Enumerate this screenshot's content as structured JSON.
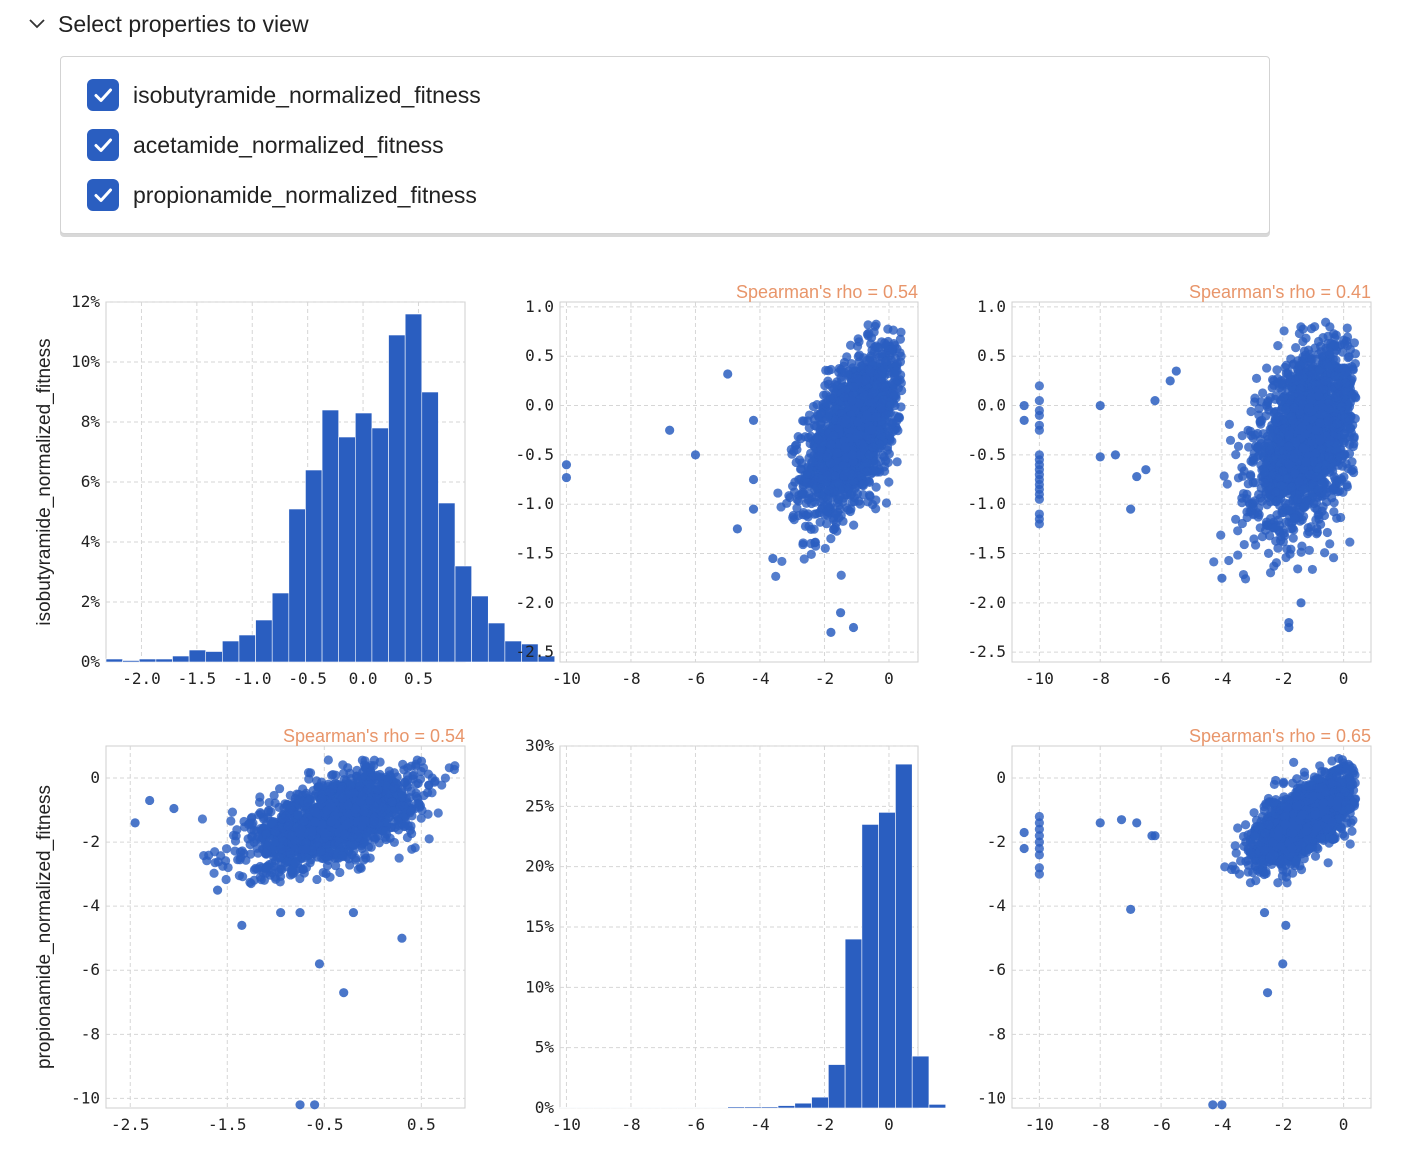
{
  "header": {
    "toggle_label": "Select properties to view"
  },
  "properties": [
    {
      "label": "isobutyramide_normalized_fitness",
      "checked": true
    },
    {
      "label": "acetamide_normalized_fitness",
      "checked": true
    },
    {
      "label": "propionamide_normalized_fitness",
      "checked": true
    }
  ],
  "colors": {
    "accent": "#2a5ec0",
    "point": "#2a5ec0",
    "rho_text": "#e8956a",
    "grid": "#d6d6d6"
  },
  "chart_data": [
    {
      "type": "bar",
      "ylabel": "isobutyramide_normalized_fitness",
      "x_ticks": [
        "-2.0",
        "-1.5",
        "-1.0",
        "-0.5",
        "0.0",
        "0.5"
      ],
      "y_ticks": [
        "0%",
        "2%",
        "4%",
        "6%",
        "8%",
        "10%",
        "12%"
      ],
      "xlim": [
        -2.32,
        0.92
      ],
      "ylim": [
        0,
        12
      ],
      "bin_start": -2.32,
      "bin_width": 0.15,
      "values": [
        0.1,
        0.05,
        0.1,
        0.1,
        0.2,
        0.4,
        0.35,
        0.7,
        0.9,
        1.4,
        2.3,
        5.1,
        6.4,
        8.4,
        7.5,
        8.3,
        7.8,
        10.9,
        11.6,
        9.0,
        5.3,
        3.2,
        2.2,
        1.3,
        0.7,
        0.6,
        0.2
      ],
      "grid": true
    },
    {
      "type": "scatter",
      "annotation": "Spearman's rho = 0.54",
      "x_ticks": [
        "-10",
        "-8",
        "-6",
        "-4",
        "-2",
        "0"
      ],
      "y_ticks": [
        "1.0",
        "0.5",
        "0.0",
        "-0.5",
        "-1.0",
        "-1.5",
        "-2.0",
        "-2.5"
      ],
      "xlim": [
        -10.2,
        0.9
      ],
      "ylim": [
        -2.6,
        1.05
      ],
      "outliers": [
        [
          -10,
          -0.6
        ],
        [
          -10,
          -0.73
        ],
        [
          -6.8,
          -0.25
        ],
        [
          -5.0,
          0.32
        ],
        [
          -6.0,
          -0.5
        ],
        [
          -4.2,
          -0.15
        ],
        [
          -4.2,
          -0.75
        ],
        [
          -4.7,
          -1.25
        ],
        [
          -4.2,
          -1.05
        ],
        [
          -3.6,
          -1.55
        ],
        [
          -1.8,
          -2.3
        ],
        [
          -1.1,
          -2.25
        ],
        [
          -1.5,
          -2.1
        ]
      ],
      "cloud": {
        "cx": -1.1,
        "sx": 0.75,
        "cy": -0.25,
        "sy": 0.42,
        "corr": 0.55,
        "xmin": -3.8,
        "xmax": 0.4,
        "ymin": -1.9,
        "ymax": 0.85,
        "n": 1700
      },
      "grid": true
    },
    {
      "type": "scatter",
      "annotation": "Spearman's rho = 0.41",
      "x_ticks": [
        "-10",
        "-8",
        "-6",
        "-4",
        "-2",
        "0"
      ],
      "y_ticks": [
        "1.0",
        "0.5",
        "0.0",
        "-0.5",
        "-1.0",
        "-1.5",
        "-2.0",
        "-2.5"
      ],
      "xlim": [
        -10.9,
        0.9
      ],
      "ylim": [
        -2.6,
        1.05
      ],
      "column_x": -10,
      "column_ys": [
        0.2,
        0.05,
        -0.05,
        -0.1,
        -0.2,
        -0.25,
        -0.5,
        -0.55,
        -0.6,
        -0.65,
        -0.7,
        -0.75,
        -0.8,
        -0.85,
        -0.9,
        -0.95,
        -1.1,
        -1.15,
        -1.2
      ],
      "outliers": [
        [
          -10.5,
          0.0
        ],
        [
          -10.5,
          -0.15
        ],
        [
          -8.0,
          0.0
        ],
        [
          -8.0,
          -0.52
        ],
        [
          -7.5,
          -0.5
        ],
        [
          -6.2,
          0.05
        ],
        [
          -6.5,
          -0.65
        ],
        [
          -6.8,
          -0.72
        ],
        [
          -7.0,
          -1.05
        ],
        [
          -5.5,
          0.35
        ],
        [
          -5.7,
          0.25
        ],
        [
          -4.0,
          -1.75
        ],
        [
          -1.8,
          -2.25
        ],
        [
          -1.8,
          -2.2
        ],
        [
          -1.4,
          -2.0
        ]
      ],
      "cloud": {
        "cx": -1.2,
        "sx": 0.85,
        "cy": -0.3,
        "sy": 0.45,
        "corr": 0.42,
        "xmin": -4.5,
        "xmax": 0.4,
        "ymin": -1.9,
        "ymax": 0.85,
        "n": 1900
      },
      "grid": true
    },
    {
      "type": "scatter",
      "annotation": "Spearman's rho = 0.54",
      "ylabel": "propionamide_normalized_fitness",
      "x_ticks": [
        "-2.5",
        "-1.5",
        "-0.5",
        "0.5"
      ],
      "y_ticks": [
        "0",
        "-2",
        "-4",
        "-6",
        "-8",
        "-10"
      ],
      "xlim": [
        -2.75,
        0.95
      ],
      "ylim": [
        -10.3,
        1.0
      ],
      "outliers": [
        [
          -2.45,
          -1.4
        ],
        [
          -2.3,
          -0.7
        ],
        [
          -2.05,
          -0.95
        ],
        [
          -1.6,
          -3.5
        ],
        [
          -1.35,
          -4.6
        ],
        [
          -0.95,
          -4.2
        ],
        [
          -0.75,
          -4.2
        ],
        [
          -0.55,
          -5.8
        ],
        [
          -0.3,
          -6.7
        ],
        [
          -0.2,
          -4.2
        ],
        [
          0.3,
          -5.0
        ],
        [
          -0.75,
          -10.2
        ],
        [
          -0.6,
          -10.2
        ]
      ],
      "cloud": {
        "cx": -0.4,
        "sx": 0.42,
        "cy": -1.3,
        "sy": 0.75,
        "corr": 0.55,
        "xmin": -1.9,
        "xmax": 0.85,
        "ymin": -3.3,
        "ymax": 0.6,
        "n": 1700
      },
      "grid": true
    },
    {
      "type": "bar",
      "x_ticks": [
        "-10",
        "-8",
        "-6",
        "-4",
        "-2",
        "0"
      ],
      "y_ticks": [
        "0%",
        "5%",
        "10%",
        "15%",
        "20%",
        "25%",
        "30%"
      ],
      "xlim": [
        -10.2,
        0.9
      ],
      "ylim": [
        0,
        30
      ],
      "bin_start": -10.2,
      "bin_width": 0.52,
      "values": [
        0.05,
        0.05,
        0.05,
        0.05,
        0.05,
        0.05,
        0.05,
        0.05,
        0.05,
        0.05,
        0.1,
        0.1,
        0.1,
        0.2,
        0.4,
        0.9,
        3.6,
        14.0,
        23.5,
        24.5,
        28.5,
        4.3,
        0.3
      ],
      "grid": true
    },
    {
      "type": "scatter",
      "annotation": "Spearman's rho = 0.65",
      "x_ticks": [
        "-10",
        "-8",
        "-6",
        "-4",
        "-2",
        "0"
      ],
      "y_ticks": [
        "0",
        "-2",
        "-4",
        "-6",
        "-8",
        "-10"
      ],
      "xlim": [
        -10.9,
        0.9
      ],
      "ylim": [
        -10.3,
        1.0
      ],
      "column_x": -10,
      "column_ys": [
        -1.2,
        -1.4,
        -1.6,
        -1.8,
        -2.0,
        -2.2,
        -2.4,
        -2.8,
        -3.0
      ],
      "outliers": [
        [
          -10.5,
          -1.7
        ],
        [
          -10.5,
          -2.2
        ],
        [
          -8.0,
          -1.4
        ],
        [
          -7.3,
          -1.3
        ],
        [
          -6.8,
          -1.4
        ],
        [
          -6.3,
          -1.8
        ],
        [
          -6.2,
          -1.8
        ],
        [
          -7.0,
          -4.1
        ],
        [
          -4.3,
          -10.2
        ],
        [
          -4.0,
          -10.2
        ],
        [
          -2.5,
          -6.7
        ],
        [
          -2.0,
          -5.8
        ],
        [
          -1.9,
          -4.6
        ],
        [
          -2.6,
          -4.2
        ]
      ],
      "cloud": {
        "cx": -1.3,
        "sx": 0.8,
        "cy": -1.3,
        "sy": 0.7,
        "corr": 0.66,
        "xmin": -5.0,
        "xmax": 0.4,
        "ymin": -3.3,
        "ymax": 0.65,
        "n": 1800
      },
      "grid": true
    }
  ]
}
